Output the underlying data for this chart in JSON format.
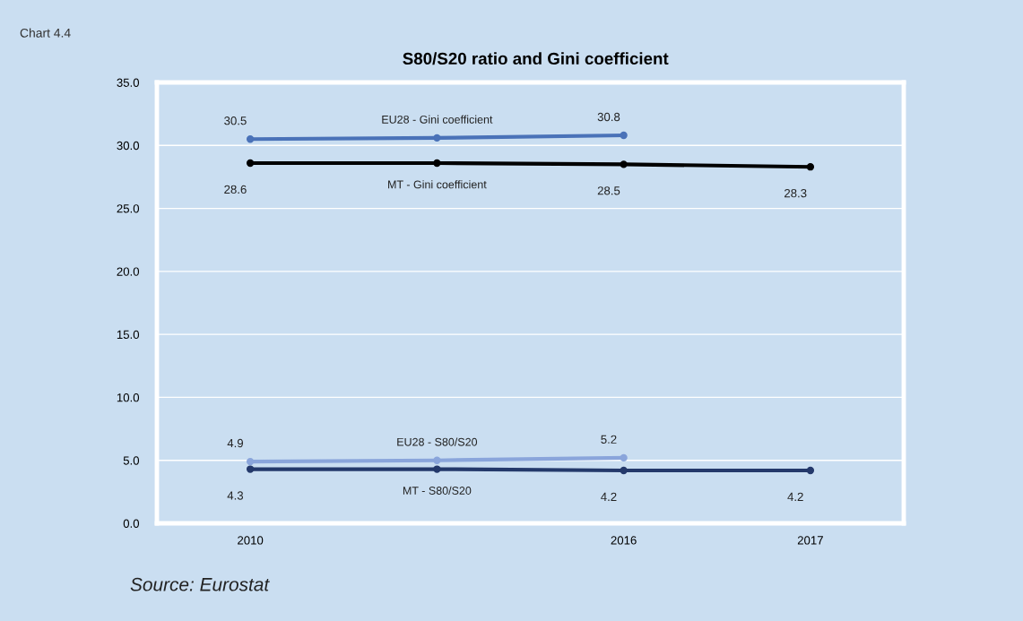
{
  "chart_data": {
    "type": "line",
    "title": "S80/S20 ratio and Gini coefficient",
    "categories": [
      "2010",
      null,
      "2016",
      "2017"
    ],
    "series": [
      {
        "name": "EU28 - Gini coefficient",
        "color": "#4a72b8",
        "values": [
          30.5,
          30.6,
          30.8,
          null
        ],
        "value_labels": [
          "30.5",
          null,
          "30.8",
          null
        ]
      },
      {
        "name": "MT - Gini coefficient",
        "color": "#000000",
        "values": [
          28.6,
          28.6,
          28.5,
          28.3
        ],
        "value_labels": [
          "28.6",
          null,
          "28.5",
          "28.3"
        ]
      },
      {
        "name": "EU28 - S80/S20",
        "color": "#8aa5db",
        "values": [
          4.9,
          5.0,
          5.2,
          null
        ],
        "value_labels": [
          "4.9",
          null,
          "5.2",
          null
        ]
      },
      {
        "name": "MT - S80/S20",
        "color": "#24396b",
        "values": [
          4.3,
          4.3,
          4.2,
          4.2
        ],
        "value_labels": [
          "4.3",
          null,
          "4.2",
          "4.2"
        ]
      }
    ],
    "ylim": [
      0,
      35
    ],
    "yticks": [
      {
        "value": 0,
        "label": "0.0"
      },
      {
        "value": 5,
        "label": "5.0"
      },
      {
        "value": 10,
        "label": "10.0"
      },
      {
        "value": 15,
        "label": "15.0"
      },
      {
        "value": 20,
        "label": "20.0"
      },
      {
        "value": 25,
        "label": "25.0"
      },
      {
        "value": 30,
        "label": "30.0"
      },
      {
        "value": 35,
        "label": "35.0"
      }
    ],
    "grid": "y",
    "marker": "circle",
    "line_style": "solid",
    "annotations": [
      "Chart 4.4",
      "Source: Eurostat"
    ]
  }
}
